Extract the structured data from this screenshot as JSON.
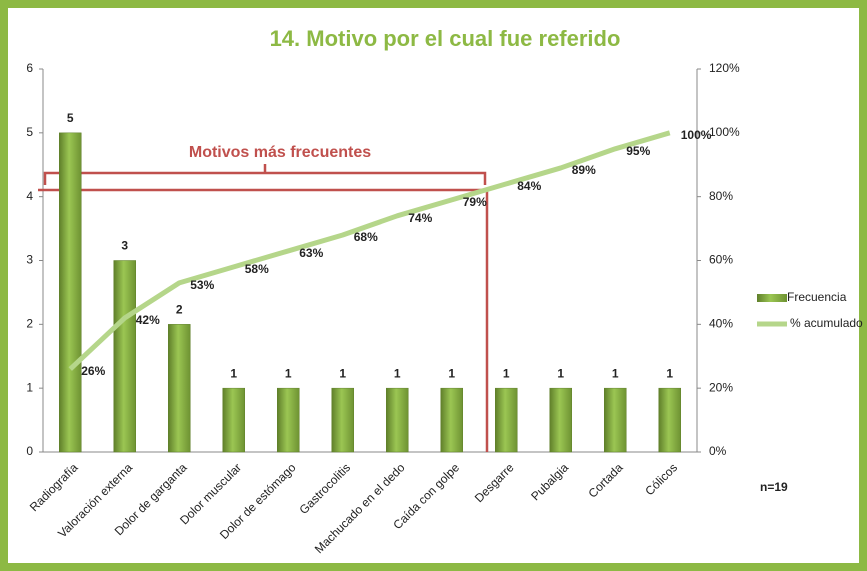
{
  "chart_data": {
    "type": "pareto",
    "title": "14. Motivo por el cual fue referido",
    "categories": [
      "Radiografía",
      "Valoración externa",
      "Dolor de garganta",
      "Dolor muscular",
      "Dolor de estómago",
      "Gastrocolitis",
      "Machucado en el dedo",
      "Caída con golpe",
      "Desgarre",
      "Pubalgia",
      "Cortada",
      "Cólicos"
    ],
    "series": [
      {
        "name": "Frecuencia",
        "color": "#8cb443",
        "values": [
          5,
          3,
          2,
          1,
          1,
          1,
          1,
          1,
          1,
          1,
          1,
          1
        ]
      },
      {
        "name": "% acumulado",
        "color": "#b5d68a",
        "axis": "y2",
        "values": [
          26,
          42,
          53,
          58,
          63,
          68,
          74,
          79,
          84,
          89,
          95,
          100
        ],
        "value_labels": [
          "26%",
          "42%",
          "53%",
          "58%",
          "63%",
          "68%",
          "74%",
          "79%",
          "84%",
          "89%",
          "95%",
          "100%"
        ]
      }
    ],
    "ylim": [
      0,
      6
    ],
    "yticks": [
      0,
      1,
      2,
      3,
      4,
      5,
      6
    ],
    "y2lim": [
      0,
      120
    ],
    "y2ticks": [
      {
        "value": 0,
        "label": "0%"
      },
      {
        "value": 20,
        "label": "20%"
      },
      {
        "value": 40,
        "label": "40%"
      },
      {
        "value": 60,
        "label": "60%"
      },
      {
        "value": 80,
        "label": "80%"
      },
      {
        "value": 100,
        "label": "100%"
      },
      {
        "value": 120,
        "label": "120%"
      }
    ],
    "annotations": [
      "Motivos más frecuentes",
      "n=19"
    ],
    "legend": "right",
    "grid": false
  }
}
